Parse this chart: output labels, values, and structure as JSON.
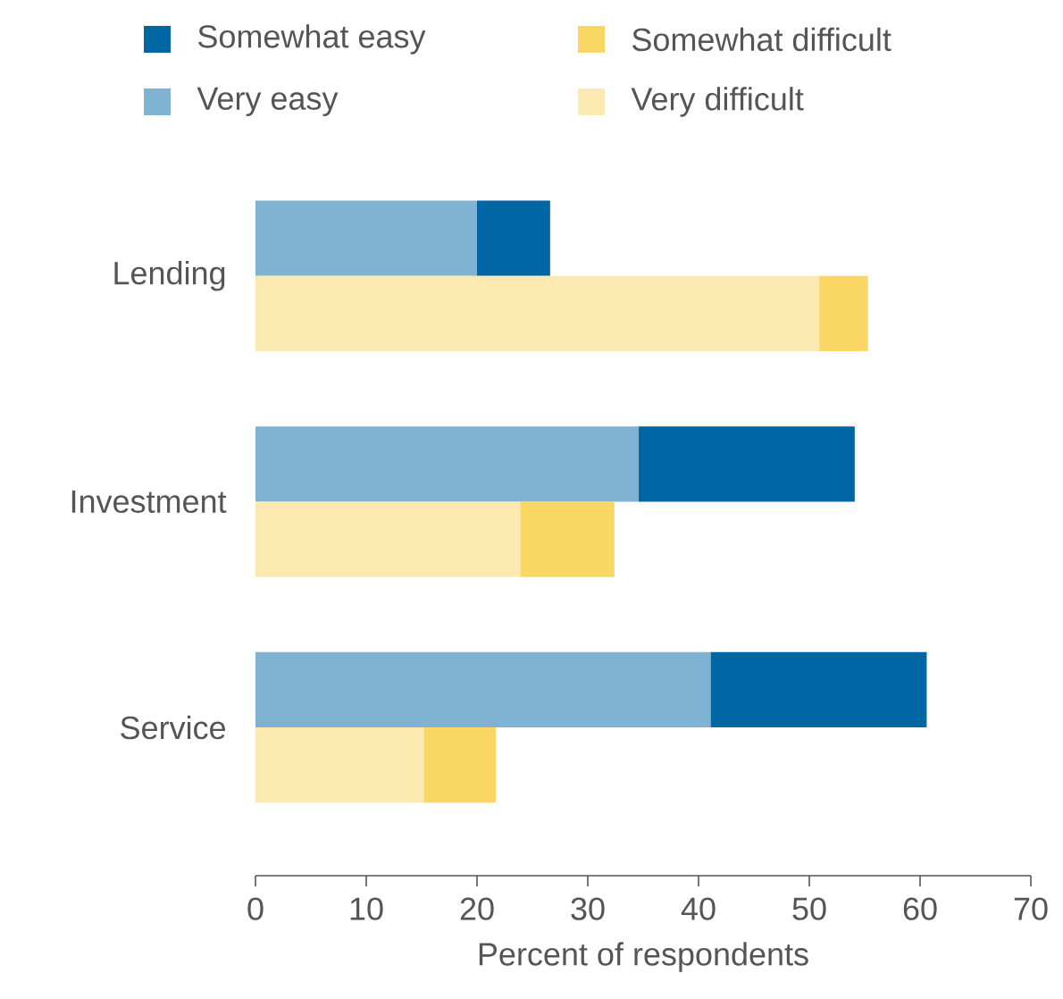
{
  "chart_data": {
    "type": "bar",
    "orientation": "horizontal",
    "stacked": true,
    "categories": [
      "Lending",
      null,
      null,
      "Investment",
      null,
      null,
      "Service",
      null
    ],
    "series": [
      {
        "name": "Very easy",
        "color": "#80b2d2",
        "values": [
          20,
          null,
          null,
          34.6,
          null,
          null,
          41.1,
          null
        ]
      },
      {
        "name": "Somewhat easy",
        "color": "#0066a4",
        "values": [
          6.6,
          null,
          null,
          19.5,
          null,
          null,
          19.5,
          null
        ]
      },
      {
        "name": "Very difficult",
        "color": "#fce9b2",
        "values": [
          null,
          50.9,
          null,
          null,
          23.9,
          null,
          null,
          15.2
        ]
      },
      {
        "name": "Somewhat difficult",
        "color": "#fad665",
        "values": [
          null,
          4.4,
          null,
          null,
          8.5,
          null,
          null,
          6.5
        ]
      }
    ],
    "xlabel": "Percent of respondents",
    "xlim": [
      0,
      70
    ],
    "xticks": [
      0,
      10,
      20,
      30,
      40,
      50,
      60,
      70
    ],
    "legend": "top"
  }
}
